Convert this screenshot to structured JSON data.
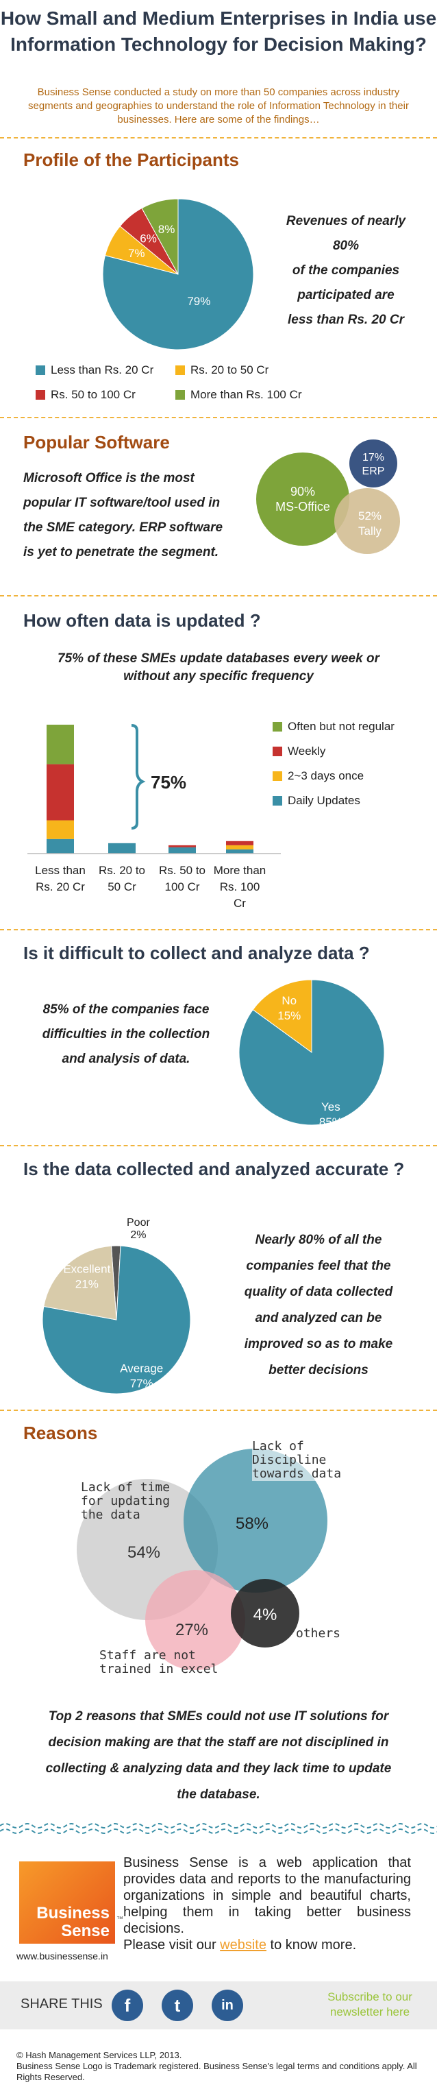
{
  "header": {
    "title_line1": "How Small and Medium Enterprises in India use",
    "title_line2": "Information Technology for Decision Making?",
    "intro": "Business Sense conducted a study on more than 50 companies across industry segments and geographies to understand the role of Information Technology in their businesses. Here are some of the findings…"
  },
  "profile": {
    "heading": "Profile of the Participants",
    "callout_lines": [
      "Revenues of nearly",
      "80%",
      "of the companies",
      "participated are",
      "less than Rs. 20 Cr"
    ]
  },
  "software": {
    "heading": "Popular Software",
    "text_lines": [
      "Microsoft Office is the most",
      "popular IT software/tool used in",
      "the SME category. ERP software",
      "is yet to penetrate the segment."
    ],
    "bubbles": [
      {
        "label": "MS-Office",
        "value": "90%"
      },
      {
        "label": "ERP",
        "value": "17%"
      },
      {
        "label": "Tally",
        "value": "52%"
      }
    ]
  },
  "update": {
    "heading": "How often data is updated ?",
    "subtitle_line1": "75% of these SMEs update databases every week  or",
    "subtitle_line2": "without any specific frequency",
    "bracket_label": "75%"
  },
  "difficult": {
    "heading": "Is it difficult to collect and analyze data ?",
    "text_lines": [
      "85% of the companies face",
      "difficulties in the collection",
      "and analysis of data."
    ]
  },
  "accurate": {
    "heading": "Is the data collected and analyzed accurate ?",
    "text_lines": [
      "Nearly 80% of all the",
      "companies feel that the",
      "quality of data collected",
      "and analyzed  can be",
      "improved so as to make",
      "better decisions"
    ]
  },
  "reasons": {
    "heading": "Reasons",
    "labels": {
      "discipline": [
        "Lack of",
        "Discipline",
        "towards data"
      ],
      "time": [
        "Lack of time",
        "for updating",
        "the data"
      ],
      "staff": [
        "Staff are not",
        "trained in excel"
      ],
      "others": "others"
    },
    "values": {
      "discipline": "58%",
      "time": "54%",
      "staff": "27%",
      "others": "4%"
    },
    "conclusion_lines": [
      "Top 2 reasons that SMEs could not use IT solutions for",
      "decision making are that the staff are not disciplined in",
      "collecting & analyzing data and they lack time to update",
      "the database."
    ]
  },
  "about": {
    "logo_line1": "Business",
    "logo_line2": "Sense",
    "logo_tm": "™",
    "site": "www.businessense.in",
    "text": "Business Sense is a web application that provides data and reports to the manufacturing organizations in simple and beautiful charts, helping them in taking better business decisions.",
    "visit_prefix": "Please visit our ",
    "visit_link": "website",
    "visit_suffix": " to know more."
  },
  "share": {
    "label": "SHARE THIS",
    "subscribe_line1": "Subscribe to our",
    "subscribe_line2": "newsletter here",
    "icons": [
      "f",
      "t",
      "in"
    ]
  },
  "footer": {
    "copyright": "© Hash Management Services LLP, 2013.",
    "legal": "Business Sense Logo is Trademark registered. Business Sense's legal terms and conditions apply. All Rights Reserved."
  },
  "colors": {
    "teal": "#3a8fa6",
    "yellow": "#f7b51b",
    "red": "#c6322f",
    "green": "#7ea43a",
    "heading": "#2e3a4c",
    "accent": "#b36b16"
  },
  "chart_data": [
    {
      "type": "pie",
      "categories": [
        "Less than Rs. 20 Cr",
        "Rs. 20 to 50 Cr",
        "Rs. 50 to 100 Cr",
        "More than Rs. 100 Cr"
      ],
      "values": [
        79,
        7,
        6,
        8
      ],
      "colors": [
        "#3a8fa6",
        "#f7b51b",
        "#c6322f",
        "#7ea43a"
      ],
      "legend": "bottom"
    },
    {
      "type": "bar",
      "stacked": true,
      "categories": [
        "Less than Rs. 20 Cr",
        "Rs. 20 to 50 Cr",
        "Rs. 50 to 100 Cr",
        "More than Rs. 100 Cr"
      ],
      "series": [
        {
          "name": "Daily Updates",
          "color": "#3a8fa6",
          "values": [
            7,
            5,
            3,
            2
          ]
        },
        {
          "name": "2~3 days once",
          "color": "#f7b51b",
          "values": [
            9,
            0,
            0,
            2
          ]
        },
        {
          "name": "Weekly",
          "color": "#c6322f",
          "values": [
            27,
            0,
            1,
            2
          ]
        },
        {
          "name": "Often but not regular",
          "color": "#7ea43a",
          "values": [
            19,
            0,
            0,
            0
          ]
        }
      ],
      "ylim": [
        0,
        62
      ],
      "legend": "right"
    },
    {
      "type": "pie",
      "categories": [
        "Yes",
        "No"
      ],
      "values": [
        85,
        15
      ],
      "colors": [
        "#3a8fa6",
        "#f7b51b"
      ]
    },
    {
      "type": "pie",
      "categories": [
        "Average",
        "Excellent",
        "Poor"
      ],
      "values": [
        77,
        21,
        2
      ],
      "colors": [
        "#3a8fa6",
        "#d8cbaa",
        "#555555"
      ]
    }
  ]
}
